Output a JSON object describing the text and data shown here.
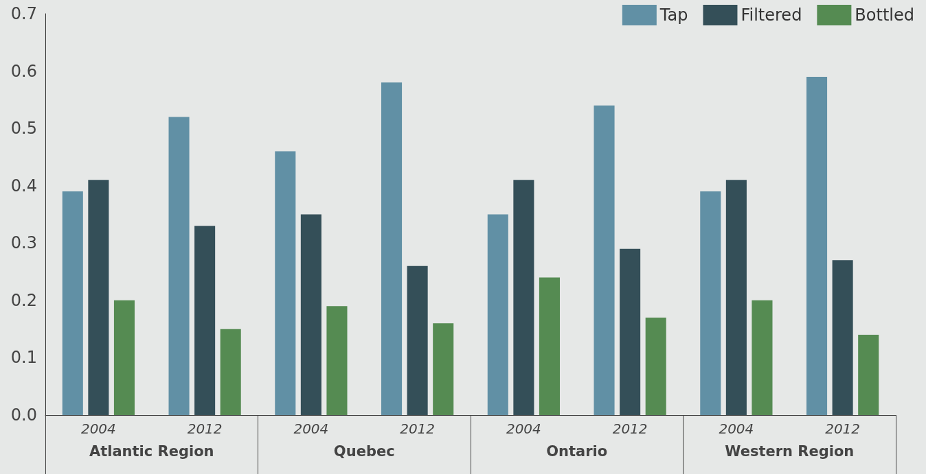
{
  "chart_data": {
    "type": "bar",
    "categories": [
      "2004",
      "2012",
      "2004",
      "2012",
      "2004",
      "2012",
      "2004",
      "2012"
    ],
    "annotations": [
      "Atlantic Region",
      "Quebec",
      "Ontario",
      "Western Region"
    ],
    "series": [
      {
        "name": "Tap",
        "color": "#6190a5",
        "values": [
          0.39,
          0.52,
          0.46,
          0.58,
          0.35,
          0.54,
          0.39,
          0.59
        ]
      },
      {
        "name": "Filtered",
        "color": "#344f58",
        "values": [
          0.41,
          0.33,
          0.35,
          0.26,
          0.41,
          0.29,
          0.41,
          0.27
        ]
      },
      {
        "name": "Bottled",
        "color": "#558b52",
        "values": [
          0.2,
          0.15,
          0.19,
          0.16,
          0.24,
          0.17,
          0.2,
          0.14
        ]
      }
    ],
    "ylim": [
      0,
      0.7
    ],
    "yticks": [
      {
        "value": 0,
        "label": "0.0"
      },
      0.1,
      0.2,
      0.3,
      0.4,
      0.5,
      0.6,
      0.7
    ],
    "grid": false,
    "legend": "top right"
  }
}
